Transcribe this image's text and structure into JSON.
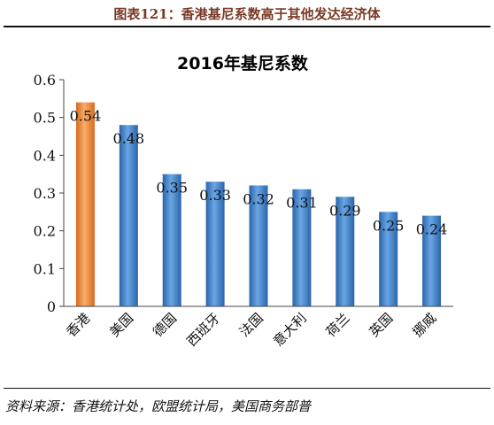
{
  "header": {
    "title": "图表121：香港基尼系数高于其他发达经济体"
  },
  "footer": {
    "source": "资料来源：香港统计处，欧盟统计局，美国商务部普"
  },
  "colors": {
    "highlight": "#f08a40",
    "primary": "#3d7ec8",
    "axis": "#333333"
  },
  "chart_data": {
    "type": "bar",
    "title": "2016年基尼系数",
    "xlabel": "",
    "ylabel": "",
    "categories": [
      "香港",
      "美国",
      "德国",
      "西班牙",
      "法国",
      "意大利",
      "荷兰",
      "英国",
      "挪威"
    ],
    "values": [
      0.54,
      0.48,
      0.35,
      0.33,
      0.32,
      0.31,
      0.29,
      0.25,
      0.24
    ],
    "data_labels": [
      "0.54",
      "0.48",
      "0.35",
      "0.33",
      "0.32",
      "0.31",
      "0.29",
      "0.25",
      "0.24"
    ],
    "ylim": [
      0,
      0.6
    ],
    "yticks": [
      "0",
      "0.1",
      "0.2",
      "0.3",
      "0.4",
      "0.5",
      "0.6"
    ],
    "grid": false,
    "legend": "none"
  }
}
